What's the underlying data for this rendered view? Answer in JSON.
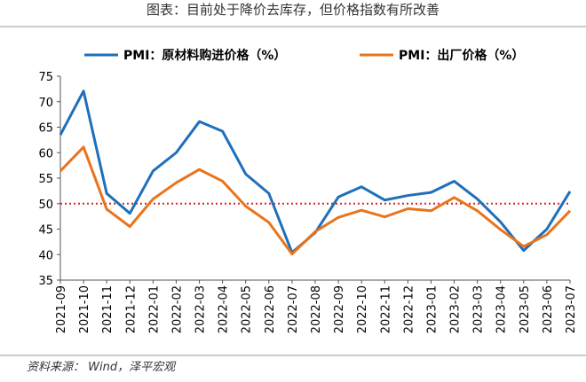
{
  "chart_data": {
    "type": "line",
    "title": "图表：目前处于降价去库存，但价格指数有所改善",
    "source": "资料来源： Wind，泽平宏观",
    "categories": [
      "2021-09",
      "2021-10",
      "2021-11",
      "2021-12",
      "2022-01",
      "2022-02",
      "2022-03",
      "2022-04",
      "2022-05",
      "2022-06",
      "2022-07",
      "2022-08",
      "2022-09",
      "2022-10",
      "2022-11",
      "2022-12",
      "2023-01",
      "2023-02",
      "2023-03",
      "2023-04",
      "2023-05",
      "2023-06",
      "2023-07"
    ],
    "series": [
      {
        "name": "PMI：原材料购进价格（%）",
        "color": "#1f6fba",
        "values": [
          63.5,
          72.1,
          52.0,
          48.1,
          56.4,
          60.0,
          66.1,
          64.2,
          55.8,
          52.0,
          40.4,
          44.3,
          51.3,
          53.3,
          50.7,
          51.6,
          52.2,
          54.4,
          50.9,
          46.4,
          40.8,
          45.0,
          52.4
        ]
      },
      {
        "name": "PMI：出厂价格（%）",
        "color": "#e9741c",
        "values": [
          56.4,
          61.1,
          48.9,
          45.5,
          50.9,
          54.1,
          56.7,
          54.4,
          49.5,
          46.3,
          40.1,
          44.5,
          47.3,
          48.7,
          47.4,
          49.0,
          48.6,
          51.2,
          48.6,
          44.9,
          41.6,
          43.9,
          48.6
        ]
      }
    ],
    "reference_line": {
      "value": 50,
      "color": "#e02020"
    },
    "ylim": [
      35,
      75
    ],
    "yticks": [
      35,
      40,
      45,
      50,
      55,
      60,
      65,
      70,
      75
    ]
  }
}
